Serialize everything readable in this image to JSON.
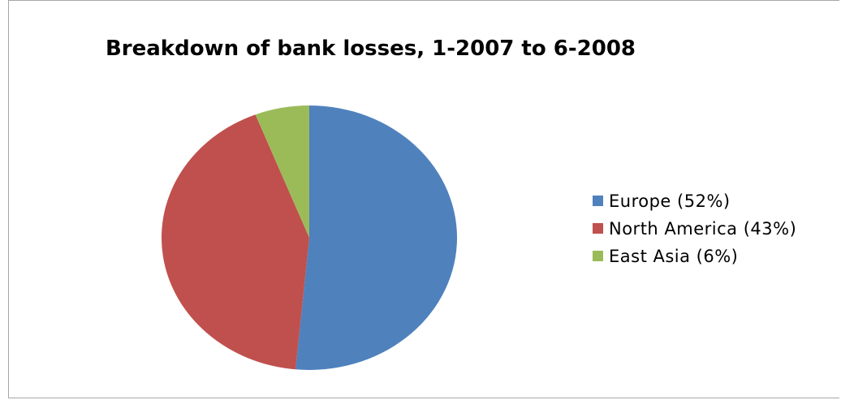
{
  "chart_data": {
    "type": "pie",
    "title": "Breakdown of bank losses, 1-2007 to 6-2008",
    "categories": [
      "Europe (52%)",
      "North America (43%)",
      "East Asia (6%)"
    ],
    "values": [
      52,
      43,
      6
    ],
    "colors": [
      "#4f81bd",
      "#c0504d",
      "#9bbb59"
    ],
    "legend": "right",
    "start_angle": "12 o'clock",
    "direction": "clockwise"
  }
}
